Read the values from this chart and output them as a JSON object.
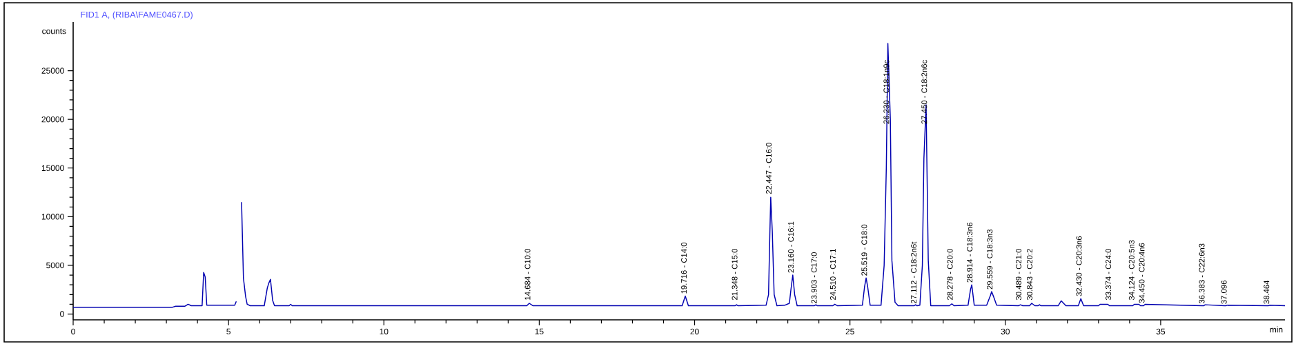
{
  "chart_data": {
    "type": "line",
    "title": "FID1 A, (RIBA\\FAME0467.D)",
    "ylabel": "counts",
    "xlabel": "min",
    "color": "#0000b0",
    "x": [
      0,
      3.2,
      3.3,
      3.6,
      3.7,
      3.8,
      4.15,
      4.2,
      4.25,
      4.3,
      5.2,
      5.25,
      5.28,
      5.38,
      5.42,
      5.48,
      5.55,
      5.6,
      5.7,
      6.15,
      6.25,
      6.3,
      6.35,
      6.42,
      6.48,
      6.95,
      7.0,
      7.05,
      14.6,
      14.68,
      14.8,
      19.6,
      19.7,
      19.8,
      21.3,
      21.35,
      21.4,
      22.3,
      22.38,
      22.42,
      22.45,
      22.5,
      22.56,
      22.65,
      22.9,
      23.05,
      23.1,
      23.16,
      23.22,
      23.3,
      23.85,
      23.903,
      23.95,
      24.45,
      24.51,
      24.6,
      25.4,
      25.47,
      25.52,
      25.57,
      25.65,
      26.0,
      26.1,
      26.17,
      26.22,
      26.3,
      26.35,
      26.45,
      26.55,
      27.06,
      27.112,
      27.16,
      27.25,
      27.33,
      27.38,
      27.45,
      27.52,
      27.6,
      28.2,
      28.28,
      28.35,
      28.8,
      28.88,
      28.92,
      29.0,
      29.4,
      29.52,
      29.56,
      29.62,
      29.72,
      30.42,
      30.49,
      30.56,
      30.78,
      30.85,
      30.95,
      31.05,
      31.1,
      31.15,
      31.7,
      31.8,
      31.95,
      32.35,
      32.43,
      32.52,
      33.0,
      33.05,
      33.3,
      33.35,
      34.1,
      34.15,
      34.3,
      34.35,
      34.4,
      34.45,
      34.5,
      36.33,
      36.383,
      36.43,
      37.05,
      37.096,
      37.14,
      38.42,
      38.464,
      38.5,
      39
    ],
    "values": [
      700,
      700,
      800,
      800,
      1000,
      850,
      850,
      4270,
      3800,
      900,
      900,
      1300,
      null,
      null,
      11500,
      3700,
      1800,
      1000,
      850,
      850,
      2700,
      3200,
      3560,
      1400,
      850,
      850,
      1000,
      850,
      850,
      1100,
      850,
      850,
      1850,
      850,
      850,
      950,
      850,
      900,
      2000,
      8000,
      12000,
      8500,
      2000,
      850,
      900,
      1100,
      2500,
      4000,
      2000,
      850,
      850,
      950,
      850,
      850,
      1000,
      850,
      900,
      2800,
      3700,
      2800,
      900,
      900,
      5000,
      15000,
      27800,
      20000,
      5500,
      1200,
      850,
      850,
      950,
      850,
      900,
      5000,
      16000,
      21500,
      5500,
      850,
      850,
      1050,
      850,
      900,
      2500,
      3000,
      900,
      900,
      1900,
      2300,
      1800,
      900,
      850,
      950,
      850,
      850,
      1100,
      850,
      850,
      950,
      850,
      850,
      1350,
      850,
      850,
      1570,
      850,
      850,
      1000,
      1000,
      850,
      850,
      1000,
      1000,
      850,
      850,
      850,
      1000,
      850,
      850,
      950,
      850,
      850,
      900,
      850,
      850,
      900,
      850
    ],
    "xlim": [
      0,
      39
    ],
    "ylim": [
      -600,
      30000
    ],
    "xticks": [
      0,
      5,
      10,
      15,
      20,
      25,
      30,
      35
    ],
    "yticks": [
      0,
      5000,
      10000,
      15000,
      20000,
      25000
    ],
    "annotations": [
      {
        "text": "14.684 - C10:0",
        "x": 14.684,
        "y": 1300
      },
      {
        "text": "19.716 - C14:0",
        "x": 19.716,
        "y": 1950
      },
      {
        "text": "21.348 - C15:0",
        "x": 21.348,
        "y": 1300
      },
      {
        "text": "22.447 - C16:0",
        "x": 22.447,
        "y": 12200
      },
      {
        "text": "23.160 - C16:1",
        "x": 23.16,
        "y": 4100
      },
      {
        "text": "23.903 - C17:0",
        "x": 23.903,
        "y": 950
      },
      {
        "text": "24.510 - C17:1",
        "x": 24.51,
        "y": 1300
      },
      {
        "text": "25.519 - C18:0",
        "x": 25.519,
        "y": 3800
      },
      {
        "text": "26.230 - C18:1n9c",
        "x": 26.23,
        "y": 19400
      },
      {
        "text": "27.112 - C18:2n6t",
        "x": 27.112,
        "y": 950
      },
      {
        "text": "27.450 - C18:2n6c",
        "x": 27.45,
        "y": 19400
      },
      {
        "text": "28.278 - C20:0",
        "x": 28.278,
        "y": 1300
      },
      {
        "text": "28.914 - C18:3n6",
        "x": 28.914,
        "y": 3100
      },
      {
        "text": "29.559 - C18:3n3",
        "x": 29.559,
        "y": 2400
      },
      {
        "text": "30.489 - C21:0",
        "x": 30.489,
        "y": 1300
      },
      {
        "text": "30.843 - C20:2",
        "x": 30.843,
        "y": 1300
      },
      {
        "text": "32.430 - C20:3n6",
        "x": 32.43,
        "y": 1700
      },
      {
        "text": "33.374 - C24:0",
        "x": 33.374,
        "y": 1300
      },
      {
        "text": "34.124 - C20:5n3",
        "x": 34.124,
        "y": 1300
      },
      {
        "text": "34.450 - C20:4n6",
        "x": 34.45,
        "y": 1000
      },
      {
        "text": "36.383 - C22:6n3",
        "x": 36.383,
        "y": 950
      },
      {
        "text": "37.096",
        "x": 37.096,
        "y": 900
      },
      {
        "text": "38.464",
        "x": 38.464,
        "y": 900
      }
    ]
  }
}
